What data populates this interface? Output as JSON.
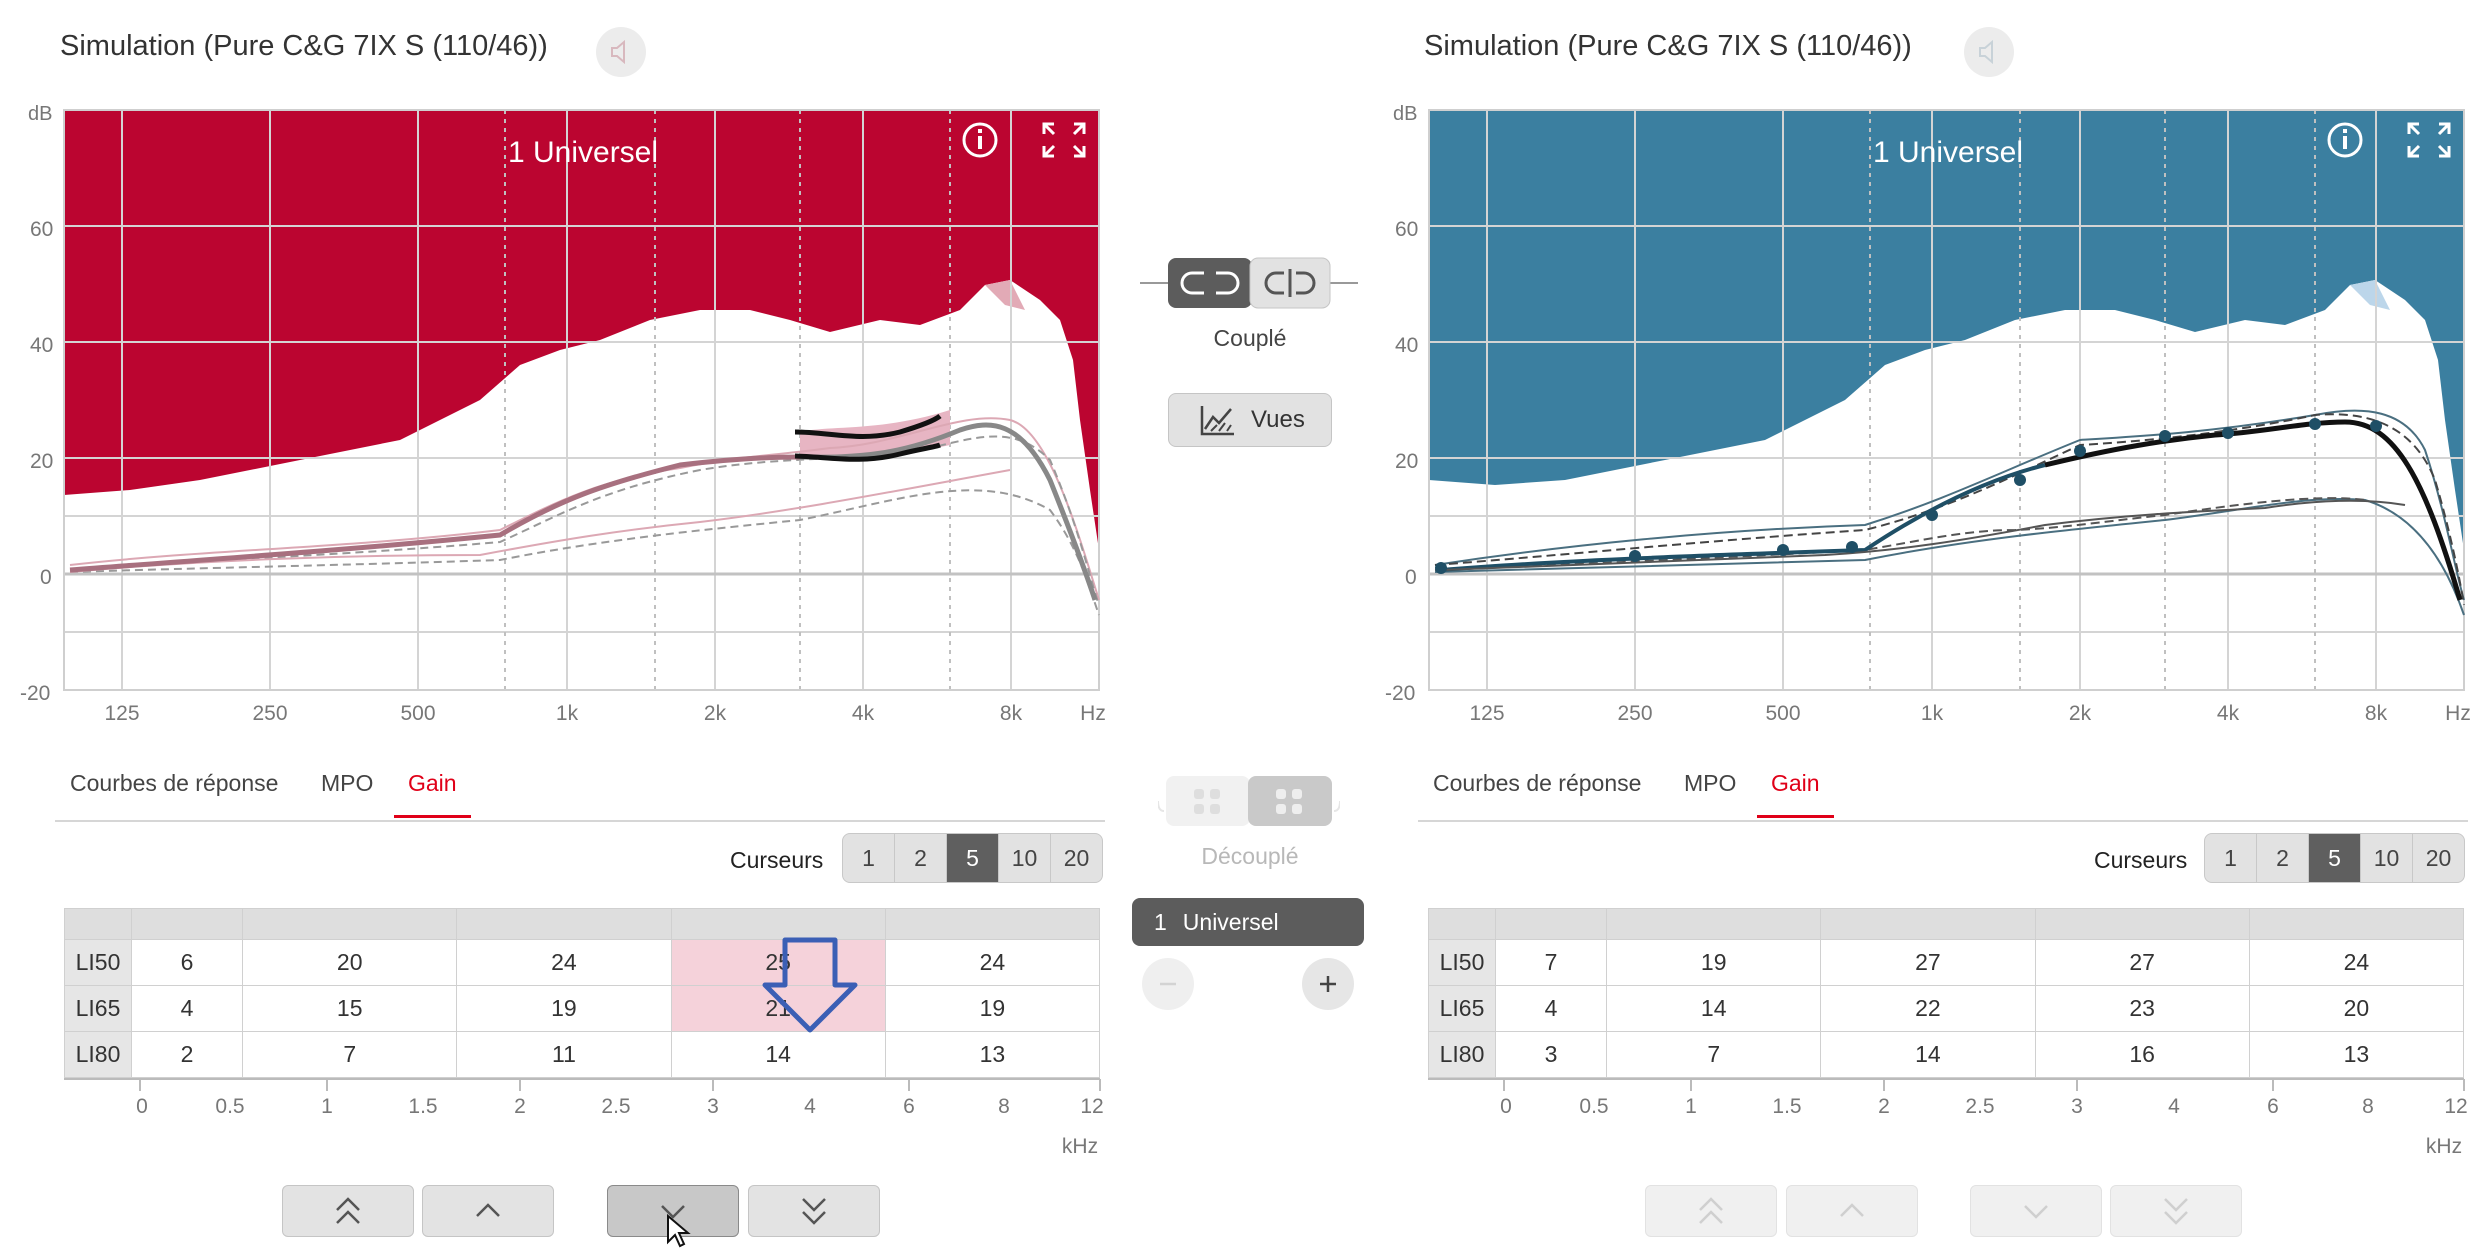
{
  "left": {
    "title": "Simulation (Pure C&G 7IX S (110/46))",
    "program": "1 Universel",
    "accent": "#bb0530",
    "tabs": [
      "Courbes de réponse",
      "MPO",
      "Gain"
    ],
    "active_tab": "Gain",
    "cursors_label": "Curseurs",
    "cursor_options": [
      "1",
      "2",
      "5",
      "10",
      "20"
    ],
    "cursor_selected": "5",
    "rows": [
      {
        "label": "LI50",
        "values": [
          "6",
          "20",
          "24",
          "25",
          "24"
        ]
      },
      {
        "label": "LI65",
        "values": [
          "4",
          "15",
          "19",
          "21",
          "19"
        ]
      },
      {
        "label": "LI80",
        "values": [
          "2",
          "7",
          "11",
          "14",
          "13"
        ]
      }
    ]
  },
  "right": {
    "title": "Simulation (Pure C&G 7IX S (110/46))",
    "program": "1 Universel",
    "accent": "#3b7fa0",
    "tabs": [
      "Courbes de réponse",
      "MPO",
      "Gain"
    ],
    "active_tab": "Gain",
    "cursors_label": "Curseurs",
    "cursor_options": [
      "1",
      "2",
      "5",
      "10",
      "20"
    ],
    "cursor_selected": "5",
    "rows": [
      {
        "label": "LI50",
        "values": [
          "7",
          "19",
          "27",
          "27",
          "24"
        ]
      },
      {
        "label": "LI65",
        "values": [
          "4",
          "14",
          "22",
          "23",
          "20"
        ]
      },
      {
        "label": "LI80",
        "values": [
          "3",
          "7",
          "14",
          "16",
          "13"
        ]
      }
    ]
  },
  "chart_axes": {
    "y_unit": "dB",
    "y_ticks": [
      "60",
      "40",
      "20",
      "0",
      "-20"
    ],
    "x_unit": "Hz",
    "x_ticks": [
      "125",
      "250",
      "500",
      "1k",
      "2k",
      "4k",
      "8k"
    ]
  },
  "khz_axis": {
    "ticks": [
      "0",
      "0.5",
      "1",
      "1.5",
      "2",
      "2.5",
      "3",
      "4",
      "6",
      "8",
      "12"
    ],
    "unit": "kHz"
  },
  "middle": {
    "coupled_label": "Couplé",
    "views_label": "Vues",
    "decoupled_label": "Découplé",
    "program_index": "1",
    "program_name": "Universel"
  },
  "icons": {
    "speaker": "speaker-icon",
    "info": "info-icon",
    "expand": "expand-icon",
    "link": "link-icon",
    "unlink": "unlink-icon",
    "views": "views-icon",
    "minus": "minus-icon",
    "plus": "plus-icon",
    "double_up": "double-chevron-up-icon",
    "up": "chevron-up-icon",
    "down": "chevron-down-icon",
    "double_down": "double-chevron-down-icon",
    "arrow_down": "arrow-down-icon",
    "cursor": "mouse-cursor-icon"
  }
}
